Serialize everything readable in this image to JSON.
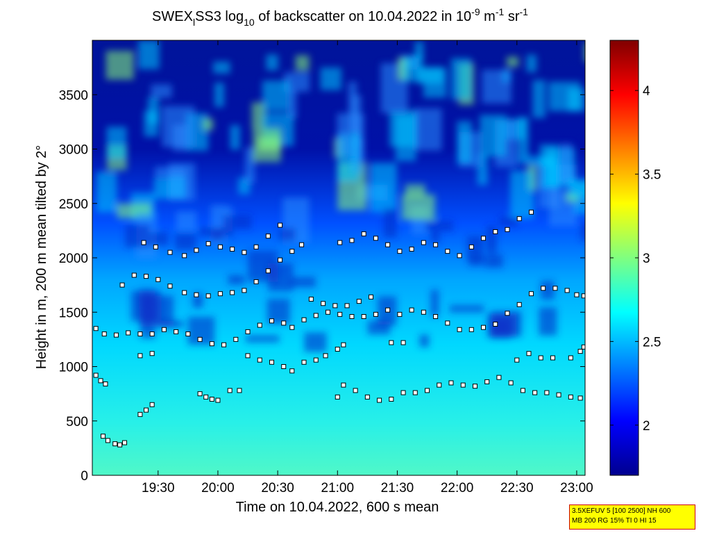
{
  "chart_data": {
    "type": "heatmap",
    "title": {
      "pre": "SWEX",
      "sub1": "l",
      "mid1": "SS3 log",
      "sub2": "10",
      "mid2": " of backscatter on 10.04.2022 in 10",
      "sup1": "-9",
      "mid3": " m",
      "sup2": "-1",
      "mid4": " sr",
      "sup3": "-1"
    },
    "xlabel": "Time on 10.04.2022, 600 s mean",
    "ylabel": "Height in m, 200 m mean tilted by 2°",
    "x_ticks": [
      "19:30",
      "20:00",
      "20:30",
      "21:00",
      "21:30",
      "22:00",
      "22:30",
      "23:00"
    ],
    "x_tick_hours": [
      19.5,
      20.0,
      20.5,
      21.0,
      21.5,
      22.0,
      22.5,
      23.0
    ],
    "xlim_hours": [
      18.95,
      23.07
    ],
    "y_ticks": [
      "0",
      "500",
      "1000",
      "1500",
      "2000",
      "2500",
      "3000",
      "3500"
    ],
    "y_tick_values": [
      0,
      500,
      1000,
      1500,
      2000,
      2500,
      3000,
      3500
    ],
    "ylim": [
      0,
      4000
    ],
    "colorbar": {
      "ticks": [
        "2",
        "2.5",
        "3",
        "3.5",
        "4"
      ],
      "values": [
        2,
        2.5,
        3,
        3.5,
        4
      ],
      "range": [
        1.7,
        4.3
      ],
      "colormap": "jet"
    },
    "layers": [
      {
        "name": "layer-surface",
        "marker_color": "#ffffff",
        "points": [
          [
            18.98,
            920
          ],
          [
            19.02,
            870
          ],
          [
            19.06,
            840
          ],
          [
            19.04,
            360
          ],
          [
            19.08,
            320
          ],
          [
            19.14,
            290
          ],
          [
            19.18,
            280
          ],
          [
            19.22,
            300
          ],
          [
            19.35,
            560
          ],
          [
            19.4,
            600
          ],
          [
            19.45,
            650
          ]
        ]
      },
      {
        "name": "layer-800",
        "marker_color": "#ffffff",
        "points": [
          [
            19.85,
            750
          ],
          [
            19.9,
            720
          ],
          [
            19.95,
            700
          ],
          [
            20.0,
            690
          ],
          [
            20.1,
            780
          ],
          [
            20.18,
            780
          ],
          [
            21.0,
            720
          ],
          [
            21.05,
            830
          ],
          [
            21.15,
            780
          ],
          [
            21.25,
            720
          ],
          [
            21.35,
            690
          ],
          [
            21.45,
            700
          ],
          [
            21.55,
            760
          ],
          [
            21.65,
            760
          ],
          [
            21.75,
            780
          ],
          [
            21.85,
            830
          ],
          [
            21.95,
            850
          ],
          [
            22.05,
            830
          ],
          [
            22.15,
            820
          ],
          [
            22.25,
            860
          ],
          [
            22.35,
            900
          ],
          [
            22.45,
            850
          ],
          [
            22.55,
            780
          ],
          [
            22.65,
            760
          ],
          [
            22.75,
            760
          ],
          [
            22.85,
            740
          ],
          [
            22.95,
            720
          ],
          [
            23.03,
            710
          ]
        ]
      },
      {
        "name": "layer-1100",
        "marker_color": "#ffffff",
        "points": [
          [
            19.35,
            1100
          ],
          [
            19.45,
            1120
          ],
          [
            20.25,
            1100
          ],
          [
            20.35,
            1060
          ],
          [
            20.45,
            1040
          ],
          [
            20.55,
            1000
          ],
          [
            20.62,
            960
          ],
          [
            20.72,
            1040
          ],
          [
            20.82,
            1060
          ],
          [
            20.9,
            1100
          ],
          [
            21.0,
            1160
          ],
          [
            21.05,
            1200
          ],
          [
            21.45,
            1220
          ],
          [
            21.55,
            1220
          ],
          [
            22.5,
            1060
          ],
          [
            22.6,
            1120
          ],
          [
            22.7,
            1080
          ],
          [
            22.8,
            1080
          ],
          [
            22.95,
            1080
          ],
          [
            23.03,
            1140
          ],
          [
            23.06,
            1180
          ]
        ]
      },
      {
        "name": "layer-1350",
        "marker_color": "#ffffff",
        "points": [
          [
            18.98,
            1350
          ],
          [
            19.05,
            1300
          ],
          [
            19.15,
            1290
          ],
          [
            19.25,
            1310
          ],
          [
            19.35,
            1300
          ],
          [
            19.45,
            1300
          ],
          [
            19.55,
            1340
          ],
          [
            19.65,
            1320
          ],
          [
            19.75,
            1300
          ],
          [
            19.85,
            1250
          ],
          [
            19.95,
            1210
          ],
          [
            20.05,
            1200
          ],
          [
            20.15,
            1250
          ],
          [
            20.25,
            1320
          ],
          [
            20.35,
            1380
          ],
          [
            20.45,
            1420
          ],
          [
            20.55,
            1400
          ],
          [
            20.62,
            1360
          ],
          [
            20.72,
            1430
          ],
          [
            20.82,
            1470
          ],
          [
            20.92,
            1500
          ],
          [
            21.02,
            1480
          ],
          [
            21.12,
            1460
          ],
          [
            21.22,
            1460
          ],
          [
            21.32,
            1480
          ],
          [
            21.42,
            1520
          ],
          [
            21.52,
            1480
          ],
          [
            21.62,
            1520
          ],
          [
            21.72,
            1500
          ],
          [
            21.82,
            1460
          ],
          [
            21.92,
            1400
          ],
          [
            22.02,
            1340
          ],
          [
            22.12,
            1340
          ],
          [
            22.22,
            1360
          ],
          [
            22.32,
            1390
          ],
          [
            22.42,
            1490
          ],
          [
            22.52,
            1570
          ],
          [
            22.62,
            1670
          ],
          [
            22.72,
            1720
          ],
          [
            22.82,
            1720
          ],
          [
            22.92,
            1700
          ],
          [
            23.0,
            1660
          ],
          [
            23.06,
            1650
          ]
        ]
      },
      {
        "name": "layer-1700",
        "marker_color": "#ffffff",
        "points": [
          [
            19.2,
            1750
          ],
          [
            19.3,
            1840
          ],
          [
            19.4,
            1830
          ],
          [
            19.5,
            1800
          ],
          [
            19.6,
            1740
          ],
          [
            19.72,
            1680
          ],
          [
            19.82,
            1660
          ],
          [
            19.92,
            1650
          ],
          [
            20.02,
            1670
          ],
          [
            20.12,
            1680
          ],
          [
            20.22,
            1700
          ],
          [
            20.32,
            1780
          ],
          [
            20.42,
            1880
          ],
          [
            20.52,
            1980
          ],
          [
            20.62,
            2060
          ],
          [
            20.7,
            2120
          ],
          [
            20.78,
            1620
          ],
          [
            20.88,
            1580
          ],
          [
            20.98,
            1560
          ],
          [
            21.08,
            1560
          ],
          [
            21.18,
            1600
          ],
          [
            21.28,
            1640
          ]
        ]
      },
      {
        "name": "layer-2100",
        "marker_color": "#ffffff",
        "points": [
          [
            19.38,
            2140
          ],
          [
            19.48,
            2100
          ],
          [
            19.6,
            2050
          ],
          [
            19.72,
            2020
          ],
          [
            19.82,
            2070
          ],
          [
            19.92,
            2130
          ],
          [
            20.02,
            2100
          ],
          [
            20.12,
            2080
          ],
          [
            20.22,
            2050
          ],
          [
            20.32,
            2100
          ],
          [
            20.42,
            2200
          ],
          [
            20.52,
            2300
          ],
          [
            21.02,
            2140
          ],
          [
            21.12,
            2160
          ],
          [
            21.22,
            2220
          ],
          [
            21.32,
            2180
          ],
          [
            21.42,
            2120
          ],
          [
            21.52,
            2060
          ],
          [
            21.62,
            2080
          ],
          [
            21.72,
            2140
          ],
          [
            21.82,
            2120
          ],
          [
            21.92,
            2060
          ],
          [
            22.02,
            2020
          ],
          [
            22.12,
            2100
          ],
          [
            22.22,
            2180
          ],
          [
            22.32,
            2240
          ],
          [
            22.42,
            2260
          ],
          [
            22.52,
            2360
          ],
          [
            22.62,
            2420
          ]
        ]
      }
    ]
  },
  "info_box": {
    "line1": "3.5XEFUV 5 [100 2500] NH 600",
    "line2": "MB 200 RG 15% TI 0 HI 15"
  }
}
